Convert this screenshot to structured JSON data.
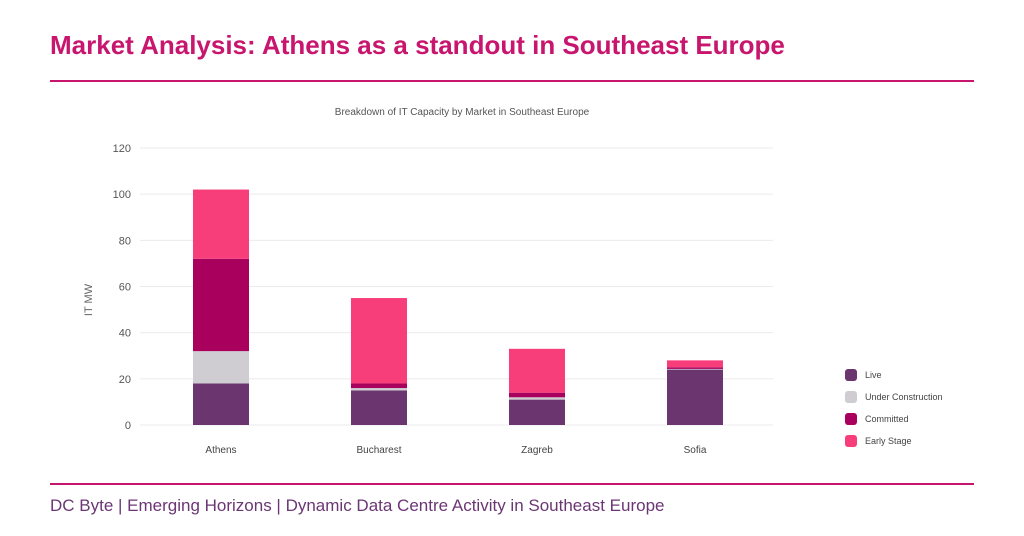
{
  "header": {
    "title": "Market Analysis: Athens as a standout in Southeast Europe"
  },
  "footer": {
    "text": "DC Byte | Emerging Horizons | Dynamic Data Centre Activity in Southeast Europe"
  },
  "chart_data": {
    "type": "bar",
    "stacked": true,
    "title": "Breakdown of IT Capacity by Market in Southeast Europe",
    "xlabel": "",
    "ylabel": "IT MW",
    "ylim": [
      0,
      120
    ],
    "yticks": [
      0,
      20,
      40,
      60,
      80,
      100,
      120
    ],
    "grid": true,
    "legend_position": "right",
    "categories": [
      "Athens",
      "Bucharest",
      "Zagreb",
      "Sofia"
    ],
    "series": [
      {
        "name": "Live",
        "color": "#6b3670",
        "values": [
          18,
          15,
          11,
          24
        ]
      },
      {
        "name": "Under Construction",
        "color": "#cfcdd2",
        "values": [
          14,
          1,
          1,
          0.3
        ]
      },
      {
        "name": "Committed",
        "color": "#a8005c",
        "values": [
          40,
          2,
          2,
          0.7
        ]
      },
      {
        "name": "Early Stage",
        "color": "#f73e7b",
        "values": [
          30,
          37,
          19,
          3
        ]
      }
    ]
  }
}
